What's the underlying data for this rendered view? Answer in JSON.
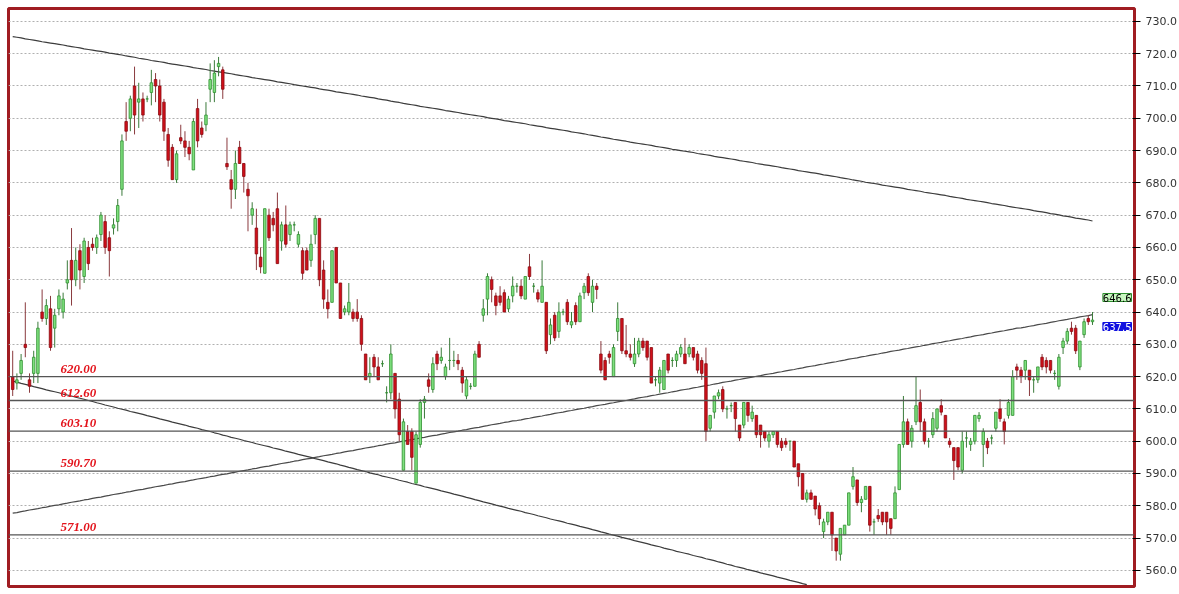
{
  "chart_data": {
    "type": "candlestick",
    "categories": [
      null,
      null,
      null,
      null,
      null,
      null,
      null,
      null,
      null,
      null,
      null,
      null,
      null,
      null,
      null,
      null,
      null,
      null,
      null,
      null,
      null,
      null,
      null,
      null,
      null,
      null,
      null,
      null,
      null,
      null,
      null,
      null,
      null,
      null,
      null,
      null,
      null,
      null,
      null,
      null,
      null,
      null,
      null,
      null,
      null,
      null,
      null,
      null,
      null,
      null,
      null,
      null,
      null,
      null,
      null,
      null,
      null,
      null,
      null,
      null,
      null,
      null,
      null,
      null,
      null,
      null,
      null,
      null,
      null,
      null,
      null,
      null,
      null,
      null,
      null,
      null,
      null,
      null,
      null,
      null,
      null,
      null,
      null,
      null,
      null,
      null,
      null,
      null,
      null,
      null,
      null,
      null,
      null,
      null,
      null,
      null,
      null,
      null,
      null,
      null,
      null,
      null,
      null,
      null,
      null,
      null,
      null,
      null,
      null,
      null,
      null,
      null,
      null,
      null,
      null,
      null,
      null,
      null,
      null,
      null,
      null,
      null,
      null,
      null,
      null,
      null,
      null,
      null,
      null,
      null,
      null,
      null,
      null,
      null,
      null,
      null,
      null,
      null,
      null,
      null,
      null,
      null,
      null,
      null,
      null,
      null,
      null,
      null,
      null,
      null,
      null,
      null,
      null,
      null,
      null,
      null,
      null,
      null,
      null,
      null,
      null,
      null,
      null,
      null,
      null,
      null,
      null,
      null,
      null,
      null,
      null,
      null,
      null,
      null,
      null,
      null,
      null,
      null,
      null,
      null,
      null,
      null,
      null,
      null,
      null,
      null,
      null,
      null,
      null,
      null,
      null,
      null,
      null,
      null,
      null,
      null,
      null,
      null,
      null,
      null,
      null,
      null,
      null,
      null,
      null,
      null,
      null,
      null,
      null,
      null,
      null,
      null,
      null,
      null,
      null,
      null,
      null,
      null,
      null,
      null,
      null,
      null,
      null,
      null,
      null,
      null,
      null,
      null,
      null,
      null,
      null,
      null,
      null,
      null,
      null,
      null,
      null,
      null,
      null,
      null,
      null,
      null,
      null,
      null,
      null,
      null,
      null,
      null,
      null,
      null,
      null,
      null,
      null,
      null,
      null,
      null,
      null,
      null
    ],
    "ohlc": [
      [
        620,
        628,
        614,
        616
      ],
      [
        618,
        621,
        616,
        619
      ],
      [
        621,
        627,
        619,
        625
      ],
      [
        630,
        643,
        626,
        629
      ],
      [
        619,
        621,
        615,
        617
      ],
      [
        621,
        628,
        618,
        626
      ],
      [
        621,
        637,
        618,
        635
      ],
      [
        640,
        647,
        637,
        638
      ],
      [
        638,
        644,
        636,
        642
      ],
      [
        641,
        645,
        628,
        629
      ],
      [
        635,
        641,
        629,
        639
      ],
      [
        641,
        647,
        639,
        645
      ],
      [
        640,
        646,
        638,
        644
      ],
      [
        649,
        656,
        647,
        650
      ],
      [
        656,
        666,
        642,
        650
      ],
      [
        650,
        660,
        648,
        656
      ],
      [
        659,
        661,
        647,
        653
      ],
      [
        651,
        663,
        649,
        662
      ],
      [
        660,
        662,
        653,
        655
      ],
      [
        661,
        663,
        659,
        660
      ],
      [
        660,
        664,
        658,
        663
      ],
      [
        664,
        671,
        662,
        670
      ],
      [
        668,
        670,
        658,
        660
      ],
      [
        663,
        665,
        651,
        659
      ],
      [
        666,
        669,
        664,
        667
      ],
      [
        668,
        675,
        665,
        673
      ],
      [
        678,
        695,
        676,
        693
      ],
      [
        699,
        705,
        693,
        696
      ],
      [
        700,
        707,
        696,
        706
      ],
      [
        710,
        716,
        695,
        701
      ],
      [
        705,
        711,
        697,
        706
      ],
      [
        706,
        708,
        699,
        701
      ],
      [
        706,
        707,
        705,
        706
      ],
      [
        708,
        715,
        704,
        711
      ],
      [
        712,
        714,
        705,
        710
      ],
      [
        710,
        712,
        699,
        701
      ],
      [
        705,
        706,
        693,
        696
      ],
      [
        695,
        697,
        685,
        687
      ],
      [
        691,
        692,
        681,
        681
      ],
      [
        681,
        690,
        680,
        689
      ],
      [
        694,
        698,
        692,
        693
      ],
      [
        693,
        696,
        688,
        691
      ],
      [
        691,
        693,
        687,
        689
      ],
      [
        684,
        700,
        684,
        699
      ],
      [
        703,
        706,
        691,
        693
      ],
      [
        697,
        699,
        694,
        695
      ],
      [
        698,
        705,
        696,
        701
      ],
      [
        709,
        717,
        705,
        712
      ],
      [
        708,
        718,
        705,
        714
      ],
      [
        716,
        719,
        713,
        717
      ],
      [
        715,
        716,
        706,
        709
      ],
      [
        686,
        694,
        684,
        685
      ],
      [
        681,
        684,
        672,
        678
      ],
      [
        678,
        690,
        675,
        686
      ],
      [
        691,
        693,
        686,
        686
      ],
      [
        686,
        686,
        677,
        682
      ],
      [
        678,
        680,
        665,
        676
      ],
      [
        670,
        674,
        667,
        672
      ],
      [
        666,
        672,
        653,
        658
      ],
      [
        657,
        660,
        652,
        654
      ],
      [
        652,
        672,
        652,
        672
      ],
      [
        670,
        672,
        662,
        663
      ],
      [
        669,
        671,
        665,
        667
      ],
      [
        672,
        677,
        655,
        655
      ],
      [
        662,
        668,
        659,
        667
      ],
      [
        667,
        673,
        660,
        661
      ],
      [
        664,
        668,
        662,
        667
      ],
      [
        667,
        668,
        665,
        667
      ],
      [
        661,
        665,
        660,
        664
      ],
      [
        659,
        660,
        650,
        652
      ],
      [
        659,
        660,
        653,
        653
      ],
      [
        656,
        664,
        654,
        661
      ],
      [
        664,
        670,
        661,
        669
      ],
      [
        669,
        669,
        648,
        650
      ],
      [
        653,
        656,
        641,
        644
      ],
      [
        643,
        647,
        638,
        641
      ],
      [
        643,
        659,
        643,
        659
      ],
      [
        660,
        660,
        649,
        649
      ],
      [
        649,
        649,
        638,
        638
      ],
      [
        640,
        642,
        639,
        641
      ],
      [
        640,
        649,
        639,
        643
      ],
      [
        640,
        641,
        637,
        638
      ],
      [
        640,
        644,
        637,
        638
      ],
      [
        638,
        639,
        628,
        630
      ],
      [
        627,
        627,
        619,
        619
      ],
      [
        620,
        626,
        618,
        621
      ],
      [
        626,
        627,
        620,
        623
      ],
      [
        623,
        626,
        619,
        619
      ],
      [
        624,
        625,
        623,
        624
      ],
      [
        615,
        617,
        612,
        615
      ],
      [
        615,
        630,
        613,
        627
      ],
      [
        621,
        621,
        607,
        610
      ],
      [
        613,
        615,
        600,
        602
      ],
      [
        591,
        607,
        591,
        606
      ],
      [
        603,
        605,
        599,
        599
      ],
      [
        603,
        604,
        591,
        595
      ],
      [
        587,
        603,
        587,
        602
      ],
      [
        599,
        613,
        598,
        612
      ],
      [
        612,
        614,
        607,
        613
      ],
      [
        619,
        621,
        615,
        617
      ],
      [
        616,
        626,
        615,
        624
      ],
      [
        627,
        628,
        622,
        624
      ],
      [
        625,
        629,
        624,
        626
      ],
      [
        620,
        624,
        619,
        623
      ],
      [
        625,
        632,
        622,
        625
      ],
      [
        625,
        628,
        623,
        625
      ],
      [
        625,
        627,
        622,
        624
      ],
      [
        622,
        623,
        615,
        618
      ],
      [
        614,
        620,
        613,
        619
      ],
      [
        617,
        618,
        616,
        617
      ],
      [
        617,
        628,
        617,
        627
      ],
      [
        630,
        631,
        626,
        626
      ],
      [
        639,
        644,
        637,
        641
      ],
      [
        644,
        652,
        639,
        651
      ],
      [
        650,
        651,
        643,
        647
      ],
      [
        645,
        646,
        639,
        642
      ],
      [
        645,
        648,
        642,
        643
      ],
      [
        646,
        647,
        640,
        640
      ],
      [
        641,
        645,
        640,
        644
      ],
      [
        645,
        651,
        643,
        648
      ],
      [
        648,
        649,
        646,
        648
      ],
      [
        648,
        650,
        644,
        645
      ],
      [
        644,
        651,
        644,
        651
      ],
      [
        654,
        658,
        650,
        651
      ],
      [
        648,
        649,
        646,
        648
      ],
      [
        646,
        647,
        643,
        644
      ],
      [
        643,
        656,
        643,
        648
      ],
      [
        643,
        643,
        627,
        628
      ],
      [
        633,
        638,
        630,
        636
      ],
      [
        639,
        640,
        631,
        632
      ],
      [
        634,
        643,
        632,
        640
      ],
      [
        640,
        641,
        639,
        640
      ],
      [
        643,
        644,
        636,
        637
      ],
      [
        636,
        640,
        635,
        637
      ],
      [
        642,
        643,
        636,
        637
      ],
      [
        637,
        646,
        637,
        645
      ],
      [
        646,
        649,
        644,
        648
      ],
      [
        651,
        652,
        645,
        646
      ],
      [
        643,
        650,
        640,
        648
      ],
      [
        648,
        649,
        644,
        647
      ],
      [
        627,
        631,
        621,
        622
      ],
      [
        625,
        626,
        619,
        619
      ],
      [
        627,
        628,
        624,
        626
      ],
      [
        620,
        630,
        620,
        629
      ],
      [
        634,
        643,
        631,
        638
      ],
      [
        638,
        638,
        627,
        628
      ],
      [
        628,
        636,
        626,
        627
      ],
      [
        627,
        630,
        625,
        626
      ],
      [
        624,
        632,
        623,
        627
      ],
      [
        627,
        632,
        626,
        631
      ],
      [
        631,
        632,
        628,
        629
      ],
      [
        631,
        631,
        625,
        626
      ],
      [
        629,
        629,
        618,
        618
      ],
      [
        619,
        620,
        617,
        619
      ],
      [
        618,
        623,
        615,
        622
      ],
      [
        616,
        625,
        616,
        625
      ],
      [
        627,
        627,
        621,
        622
      ],
      [
        625,
        626,
        623,
        625
      ],
      [
        625,
        628,
        623,
        627
      ],
      [
        627,
        630,
        626,
        629
      ],
      [
        627,
        632,
        624,
        624
      ],
      [
        627,
        630,
        626,
        629
      ],
      [
        629,
        629,
        625,
        626
      ],
      [
        627,
        628,
        621,
        622
      ],
      [
        625,
        626,
        619,
        621
      ],
      [
        624,
        629,
        600,
        603
      ],
      [
        604,
        608,
        603,
        608
      ],
      [
        609,
        614,
        607,
        614
      ],
      [
        614,
        616,
        613,
        615
      ],
      [
        616,
        617,
        609,
        610
      ],
      [
        610,
        611,
        607,
        610
      ],
      [
        611,
        612,
        609,
        611
      ],
      [
        612,
        612,
        603,
        607
      ],
      [
        605,
        605,
        600,
        601
      ],
      [
        605,
        612,
        604,
        612
      ],
      [
        612,
        612,
        606,
        608
      ],
      [
        607,
        611,
        606,
        609
      ],
      [
        608,
        608,
        601,
        602
      ],
      [
        605,
        605,
        598,
        602
      ],
      [
        603,
        603,
        600,
        601
      ],
      [
        600,
        603,
        598,
        602
      ],
      [
        602,
        603,
        601,
        603
      ],
      [
        603,
        603,
        598,
        599
      ],
      [
        600,
        601,
        597,
        598
      ],
      [
        600,
        601,
        598,
        599
      ],
      [
        600,
        600,
        597,
        600
      ],
      [
        600,
        600,
        592,
        592
      ],
      [
        593,
        593,
        586,
        589
      ],
      [
        590,
        590,
        582,
        582
      ],
      [
        582,
        585,
        581,
        584
      ],
      [
        584,
        585,
        582,
        582
      ],
      [
        583,
        583,
        577,
        579
      ],
      [
        580,
        581,
        574,
        576
      ],
      [
        572,
        576,
        570,
        575
      ],
      [
        575,
        578,
        574,
        578
      ],
      [
        578,
        578,
        566,
        571
      ],
      [
        570,
        570,
        563,
        566
      ],
      [
        565,
        573,
        563,
        573
      ],
      [
        571,
        574,
        571,
        574
      ],
      [
        574,
        584,
        574,
        584
      ],
      [
        586,
        592,
        585,
        589
      ],
      [
        588,
        588,
        580,
        581
      ],
      [
        581,
        583,
        578,
        582
      ],
      [
        582,
        586,
        582,
        586
      ],
      [
        586,
        586,
        572,
        574
      ],
      [
        575,
        576,
        571,
        575
      ],
      [
        577,
        579,
        575,
        576
      ],
      [
        578,
        578,
        574,
        575
      ],
      [
        578,
        578,
        571,
        575
      ],
      [
        576,
        576,
        571,
        573
      ],
      [
        576,
        586,
        576,
        584
      ],
      [
        585,
        599,
        585,
        599
      ],
      [
        599,
        614,
        598,
        606
      ],
      [
        606,
        607,
        599,
        599
      ],
      [
        600,
        605,
        598,
        604
      ],
      [
        606,
        620,
        605,
        611
      ],
      [
        612,
        616,
        603,
        606
      ],
      [
        606,
        607,
        599,
        600
      ],
      [
        600,
        601,
        598,
        600
      ],
      [
        602,
        609,
        601,
        607
      ],
      [
        604,
        610,
        603,
        610
      ],
      [
        611,
        613,
        608,
        609
      ],
      [
        608,
        608,
        601,
        601
      ],
      [
        600,
        601,
        598,
        599
      ],
      [
        598,
        598,
        588,
        594
      ],
      [
        598,
        598,
        591,
        592
      ],
      [
        591,
        603,
        590,
        600
      ],
      [
        601,
        603,
        598,
        601
      ],
      [
        599,
        601,
        597,
        600
      ],
      [
        600,
        608,
        599,
        608
      ],
      [
        607,
        609,
        606,
        608
      ],
      [
        599,
        604,
        592,
        603
      ],
      [
        600,
        601,
        596,
        598
      ],
      [
        601,
        602,
        599,
        601
      ],
      [
        604,
        609,
        603,
        609
      ],
      [
        610,
        613,
        606,
        607
      ],
      [
        606,
        607,
        599,
        603
      ],
      [
        608,
        613,
        607,
        612
      ],
      [
        608,
        622,
        608,
        620
      ],
      [
        623,
        624,
        619,
        622
      ],
      [
        622,
        623,
        618,
        620
      ],
      [
        622,
        625,
        619,
        625
      ],
      [
        622,
        622,
        614,
        619
      ],
      [
        619,
        620,
        615,
        619
      ],
      [
        619,
        623,
        618,
        623
      ],
      [
        626,
        627,
        622,
        623
      ],
      [
        625,
        626,
        621,
        623
      ],
      [
        625,
        625,
        621,
        622
      ],
      [
        621,
        622,
        619,
        621
      ],
      [
        617,
        627,
        616,
        626
      ],
      [
        629,
        632,
        627,
        631
      ],
      [
        631,
        635,
        630,
        634
      ],
      [
        635,
        637,
        633,
        634
      ],
      [
        635,
        636,
        627,
        628
      ],
      [
        623,
        631,
        622,
        631
      ],
      [
        633,
        638,
        632,
        637
      ],
      [
        638,
        639,
        636,
        637
      ],
      [
        637,
        640,
        636,
        637.5
      ]
    ],
    "series": [
      {
        "type": "line",
        "color": "#3c3c3c",
        "values": [
          725.3,
          725.1,
          724.9,
          724.6,
          724.4,
          724.2,
          724.0,
          723.7,
          723.5,
          723.3,
          723.1,
          722.9,
          722.7,
          722.4,
          722.2,
          722.0,
          721.8,
          721.5,
          721.3,
          721.1,
          720.9,
          720.7,
          720.5,
          720.2,
          720.0,
          719.8,
          719.6,
          719.3,
          719.1,
          718.9,
          718.6,
          718.4,
          718.2,
          717.9,
          717.7,
          717.5,
          717.3,
          717.0,
          716.8,
          716.6,
          716.4,
          716.2,
          716.0,
          715.7,
          715.5,
          715.3,
          715.1,
          714.8,
          714.6,
          714.4,
          714.2,
          714.0,
          713.8,
          713.5,
          713.3,
          713.1,
          712.9,
          712.6,
          712.4,
          712.2,
          712.0,
          711.8,
          711.6,
          711.3,
          711.1,
          710.9,
          710.7,
          710.4,
          710.2,
          710.0,
          709.8,
          709.6,
          709.4,
          709.1,
          708.9,
          708.7,
          708.5,
          708.2,
          708.0,
          707.8,
          707.6,
          707.4,
          707.2,
          706.9,
          706.7,
          706.5,
          706.3,
          706.0,
          705.8,
          705.6,
          705.3,
          705.1,
          704.9,
          704.6,
          704.4,
          704.2,
          704.0,
          703.7,
          703.5,
          703.3,
          703.1,
          702.9,
          702.7,
          702.4,
          702.2,
          702.0,
          701.8,
          701.5,
          701.3,
          701.1,
          700.9,
          700.7,
          700.5,
          700.2,
          700.0,
          699.8,
          699.6,
          699.3,
          699.1,
          698.9,
          698.7,
          698.5,
          698.3,
          698.0,
          697.8,
          697.6,
          697.4,
          697.1,
          696.9,
          696.7,
          696.5,
          696.3,
          696.1,
          695.8,
          695.6,
          695.4,
          695.2,
          694.9,
          694.7,
          694.5,
          694.2,
          694.0,
          693.8,
          693.5,
          693.3,
          693.1,
          692.9,
          692.6,
          692.4,
          692.2,
          692.0,
          691.8,
          691.6,
          691.3,
          691.1,
          690.9,
          690.7,
          690.4,
          690.2,
          690.0,
          689.8,
          689.6,
          689.4,
          689.1,
          688.9,
          688.7,
          688.5,
          688.2,
          688.0,
          687.8,
          687.6,
          687.4,
          687.2,
          686.9,
          686.7,
          686.5,
          686.3,
          686.0,
          685.8,
          685.6,
          685.4,
          685.2,
          685.0,
          684.7,
          684.5,
          684.3,
          684.1,
          683.8,
          683.6,
          683.4,
          683.2,
          683.0,
          682.8,
          682.5,
          682.3,
          682.1,
          681.9,
          681.6,
          681.4,
          681.2,
          680.9,
          680.7,
          680.5,
          680.2,
          680.0,
          679.8,
          679.6,
          679.3,
          679.1,
          678.9,
          678.7,
          678.5,
          678.3,
          678.0,
          677.8,
          677.6,
          677.4,
          677.1,
          676.9,
          676.7,
          676.5,
          676.3,
          676.1,
          675.8,
          675.6,
          675.4,
          675.2,
          674.9,
          674.7,
          674.5,
          674.3,
          674.1,
          673.9,
          673.6,
          673.4,
          673.2,
          673.0,
          672.7,
          672.5,
          672.3,
          672.1,
          671.9,
          671.7,
          671.4,
          671.2,
          671.0,
          670.8,
          670.5,
          670.3,
          670.1,
          669.8,
          669.6,
          669.4,
          669.1,
          668.9,
          668.7,
          668.5,
          668.2
        ]
      },
      {
        "type": "line",
        "color": "#4a4a4a",
        "values": [
          577.7,
          577.9,
          578.2,
          578.4,
          578.7,
          578.9,
          579.1,
          579.4,
          579.6,
          579.9,
          580.1,
          580.3,
          580.6,
          580.8,
          581.1,
          581.3,
          581.5,
          581.8,
          582.0,
          582.3,
          582.5,
          582.7,
          583.0,
          583.2,
          583.5,
          583.7,
          583.9,
          584.2,
          584.4,
          584.7,
          584.9,
          585.1,
          585.4,
          585.6,
          585.9,
          586.1,
          586.3,
          586.6,
          586.8,
          587.1,
          587.3,
          587.5,
          587.8,
          588.0,
          588.3,
          588.5,
          588.7,
          589.0,
          589.2,
          589.5,
          589.7,
          589.9,
          590.2,
          590.4,
          590.7,
          590.9,
          591.1,
          591.4,
          591.6,
          591.9,
          592.1,
          592.3,
          592.6,
          592.8,
          593.1,
          593.3,
          593.5,
          593.8,
          594.0,
          594.3,
          594.5,
          594.7,
          595.0,
          595.2,
          595.5,
          595.7,
          595.9,
          596.2,
          596.4,
          596.7,
          596.9,
          597.1,
          597.4,
          597.6,
          597.9,
          598.1,
          598.3,
          598.6,
          598.8,
          599.1,
          599.3,
          599.5,
          599.8,
          600.0,
          600.3,
          600.5,
          600.7,
          601.0,
          601.2,
          601.5,
          601.7,
          601.9,
          602.2,
          602.4,
          602.7,
          602.9,
          603.1,
          603.4,
          603.6,
          603.9,
          604.1,
          604.3,
          604.6,
          604.8,
          605.1,
          605.3,
          605.5,
          605.8,
          606.0,
          606.3,
          606.4,
          606.6,
          606.9,
          607.1,
          607.4,
          607.6,
          607.8,
          608.1,
          608.3,
          608.6,
          608.8,
          609.0,
          609.3,
          609.5,
          609.8,
          610.0,
          610.2,
          610.5,
          610.7,
          611.0,
          611.2,
          611.4,
          611.7,
          611.9,
          612.2,
          612.4,
          612.6,
          612.9,
          613.1,
          613.4,
          613.6,
          613.8,
          614.1,
          614.3,
          614.6,
          614.8,
          615.0,
          615.3,
          615.5,
          615.8,
          616.0,
          616.2,
          616.5,
          616.7,
          617.0,
          617.2,
          617.4,
          617.7,
          617.9,
          618.2,
          618.4,
          618.6,
          618.9,
          619.1,
          619.4,
          619.6,
          619.8,
          620.1,
          620.3,
          620.6,
          620.8,
          621.0,
          621.3,
          621.5,
          621.8,
          622.0,
          622.2,
          622.5,
          622.7,
          623.0,
          623.2,
          623.4,
          623.7,
          623.9,
          624.2,
          624.4,
          624.6,
          624.9,
          625.1,
          625.4,
          625.6,
          625.8,
          626.1,
          626.3,
          626.6,
          626.8,
          627.0,
          627.3,
          627.5,
          627.8,
          628.0,
          628.2,
          628.5,
          628.7,
          629.0,
          629.2,
          629.4,
          629.7,
          629.9,
          630.2,
          630.4,
          630.6,
          630.9,
          631.1,
          631.4,
          631.6,
          631.8,
          632.1,
          632.3,
          632.6,
          632.8,
          633.0,
          633.3,
          633.5,
          633.8,
          634.0,
          634.2,
          634.5,
          634.7,
          635.0,
          635.1,
          635.3,
          635.6,
          635.8,
          636.1,
          636.3,
          636.5,
          636.8,
          637.0,
          637.3,
          637.5,
          637.7,
          638.0,
          638.2,
          638.5,
          638.7,
          638.9,
          639.2
        ]
      },
      {
        "type": "line",
        "color": "#3c3c3c",
        "values": [
          618.6,
          618.3,
          617.9,
          617.6,
          617.3,
          616.9,
          616.6,
          616.3,
          615.9,
          615.6,
          615.3,
          615.0,
          614.6,
          614.3,
          614.0,
          613.6,
          613.3,
          613.0,
          612.6,
          612.3,
          611.9,
          611.6,
          611.2,
          610.9,
          610.6,
          610.2,
          609.9,
          609.6,
          609.2,
          608.9,
          608.6,
          608.3,
          607.9,
          607.6,
          607.3,
          606.9,
          606.6,
          606.3,
          605.9,
          605.6,
          605.3,
          605.0,
          604.6,
          604.3,
          604.0,
          603.6,
          603.3,
          603.0,
          602.6,
          602.3,
          601.9,
          601.6,
          601.2,
          600.9,
          600.6,
          600.2,
          599.9,
          599.6,
          599.2,
          598.9,
          598.6,
          598.3,
          597.9,
          597.6,
          597.3,
          596.9,
          596.6,
          596.3,
          595.9,
          595.6,
          595.3,
          595.0,
          594.6,
          594.3,
          594.0,
          593.6,
          593.3,
          593.0,
          592.6,
          592.3,
          591.9,
          591.6,
          591.2,
          590.9,
          590.6,
          590.2,
          589.9,
          589.6,
          589.2,
          588.9,
          588.6,
          588.3,
          587.9,
          587.6,
          587.3,
          586.9,
          586.6,
          586.3,
          585.9,
          585.6,
          585.3,
          585.0,
          584.6,
          584.3,
          584.0,
          583.6,
          583.3,
          583.0,
          582.6,
          582.3,
          581.9,
          581.6,
          581.2,
          580.9,
          580.6,
          580.2,
          579.9,
          579.6,
          579.2,
          578.9,
          578.6,
          578.3,
          577.9,
          577.6,
          577.3,
          576.9,
          576.6,
          576.3,
          575.9,
          575.6,
          575.3,
          575.0,
          574.6,
          574.3,
          574.0,
          573.6,
          573.3,
          573.0,
          572.6,
          572.3,
          571.9,
          571.6,
          571.2,
          570.9,
          570.6,
          570.2,
          569.9,
          569.6,
          569.2,
          568.9,
          568.6,
          568.3,
          567.9,
          567.6,
          567.3,
          566.9,
          566.6,
          566.3,
          565.9,
          565.6,
          565.3,
          565.0,
          564.6,
          564.3,
          564.0,
          563.6,
          563.3,
          563.0,
          562.6,
          562.3,
          561.9,
          561.6,
          561.2,
          560.9,
          560.6,
          560.2,
          559.9,
          559.6,
          559.2,
          558.9,
          558.6,
          558.3,
          557.9,
          557.6,
          557.3,
          556.9,
          556.6,
          556.3,
          555.9,
          555.6,
          null,
          null,
          null,
          null,
          null,
          null,
          null,
          null,
          null,
          null,
          null,
          null,
          null,
          null,
          null,
          null,
          null,
          null,
          null,
          null,
          null,
          null,
          null,
          null,
          null,
          null,
          null,
          null,
          null,
          null,
          null,
          null,
          null,
          null,
          null,
          null,
          null,
          null,
          null,
          null,
          null,
          null,
          null,
          null,
          null,
          null,
          null,
          null,
          null,
          null,
          null,
          null,
          null,
          null,
          null,
          null,
          null,
          null,
          null,
          null,
          null,
          null,
          null,
          null,
          null,
          null,
          null,
          null
        ]
      }
    ],
    "ref_lines": [
      {
        "axis": "y",
        "value": 620,
        "label": "620.00",
        "color": "#555555"
      },
      {
        "axis": "y",
        "value": 612.6,
        "label": "612.60",
        "color": "#555555"
      },
      {
        "axis": "y",
        "value": 603.1,
        "label": "603.10",
        "color": "#555555"
      },
      {
        "axis": "y",
        "value": 590.7,
        "label": "590.70",
        "color": "#555555"
      },
      {
        "axis": "y",
        "value": 571,
        "label": "571.00",
        "color": "#555555"
      }
    ],
    "annotations": [
      "646.6",
      "637.5"
    ],
    "ylim": [
      555,
      734
    ],
    "yticks": [
      {
        "value": 560,
        "label": "560.0"
      },
      {
        "value": 570,
        "label": "570.0"
      },
      {
        "value": 580,
        "label": "580.0"
      },
      {
        "value": 590,
        "label": "590.0"
      },
      {
        "value": 600,
        "label": "600.0"
      },
      {
        "value": 610,
        "label": "610.0"
      },
      {
        "value": 620,
        "label": "620.0"
      },
      {
        "value": 630,
        "label": "630.0"
      },
      {
        "value": 640,
        "label": "640.0"
      },
      {
        "value": 650,
        "label": "650.0"
      },
      {
        "value": 660,
        "label": "660.0"
      },
      {
        "value": 670,
        "label": "670.0"
      },
      {
        "value": 680,
        "label": "680.0"
      },
      {
        "value": 690,
        "label": "690.0"
      },
      {
        "value": 700,
        "label": "700.0"
      },
      {
        "value": 710,
        "label": "710.0"
      },
      {
        "value": 720,
        "label": "720.0"
      },
      {
        "value": 730,
        "label": "730.0"
      }
    ],
    "grid": "y",
    "tick_labels": "y"
  }
}
